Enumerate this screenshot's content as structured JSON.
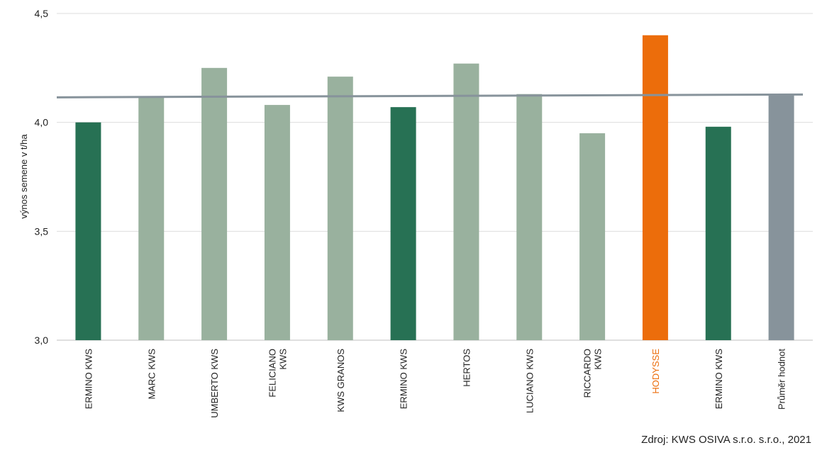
{
  "chart_data": {
    "type": "bar",
    "ylabel": "výnos semene v t/ha",
    "ylim": [
      3.0,
      4.5
    ],
    "yticks": [
      3.0,
      3.5,
      4.0,
      4.5
    ],
    "ytick_labels": [
      "3,0",
      "3,5",
      "4,0",
      "4,5"
    ],
    "grid": true,
    "categories": [
      [
        "ERMINO KWS"
      ],
      [
        "MARC KWS"
      ],
      [
        "UMBERTO KWS"
      ],
      [
        "FELICIANO",
        "KWS"
      ],
      [
        "KWS GRANOS"
      ],
      [
        "ERMINO KWS"
      ],
      [
        "HERTOS"
      ],
      [
        "LUCIANO KWS"
      ],
      [
        "RICCARDO",
        "KWS"
      ],
      [
        "HODYSSE"
      ],
      [
        "ERMINO KWS"
      ],
      [
        "Průměr hodnot"
      ]
    ],
    "values": [
      4.0,
      4.12,
      4.25,
      4.08,
      4.21,
      4.07,
      4.27,
      4.13,
      3.95,
      4.4,
      3.98,
      4.13
    ],
    "bar_colors": [
      "#277154",
      "#99b19e",
      "#99b19e",
      "#99b19e",
      "#99b19e",
      "#277154",
      "#99b19e",
      "#99b19e",
      "#99b19e",
      "#ec6d0b",
      "#277154",
      "#87939b"
    ],
    "label_colors": [
      "#222222",
      "#222222",
      "#222222",
      "#222222",
      "#222222",
      "#222222",
      "#222222",
      "#222222",
      "#222222",
      "#ec6d0b",
      "#222222",
      "#222222"
    ],
    "trend_line": {
      "start": 4.115,
      "end": 4.128,
      "color": "#87939b"
    }
  },
  "source": "Zdroj: KWS OSIVA s.r.o. s.r.o., 2021"
}
